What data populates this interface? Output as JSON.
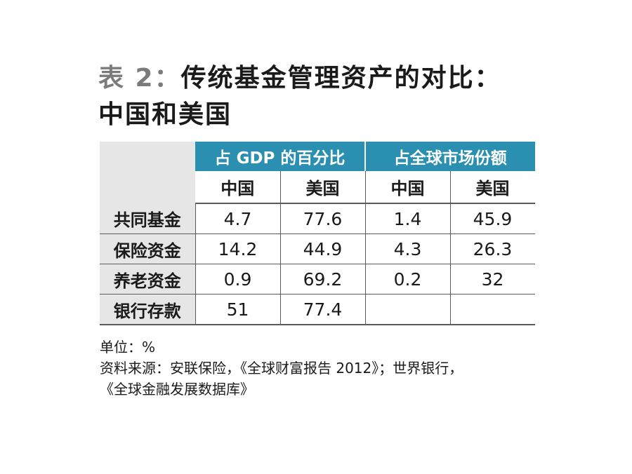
{
  "title": {
    "prefix": "表 2：",
    "line1_rest": "传统基金管理资产的对比：",
    "line2": "中国和美国"
  },
  "table": {
    "groups": [
      "占 GDP 的百分比",
      "占全球市场份额"
    ],
    "subheaders": [
      "中国",
      "美国",
      "中国",
      "美国"
    ],
    "rows": [
      {
        "label": "共同基金",
        "values": [
          "4.7",
          "77.6",
          "1.4",
          "45.9"
        ]
      },
      {
        "label": "保险资金",
        "values": [
          "14.2",
          "44.9",
          "4.3",
          "26.3"
        ]
      },
      {
        "label": "养老资金",
        "values": [
          "0.9",
          "69.2",
          "0.2",
          "32"
        ]
      },
      {
        "label": "银行存款",
        "values": [
          "51",
          "77.4",
          "",
          ""
        ]
      }
    ]
  },
  "notes": {
    "unit": "单位：%",
    "source_line1": "资料来源：安联保险，《全球财富报告 2012》；世界银行，",
    "source_line2": "《全球金融发展数据库》"
  },
  "colors": {
    "header_bg": "#2a8fb0",
    "label_bg": "#e6e6e6",
    "title_prefix": "#7b7b7b"
  }
}
